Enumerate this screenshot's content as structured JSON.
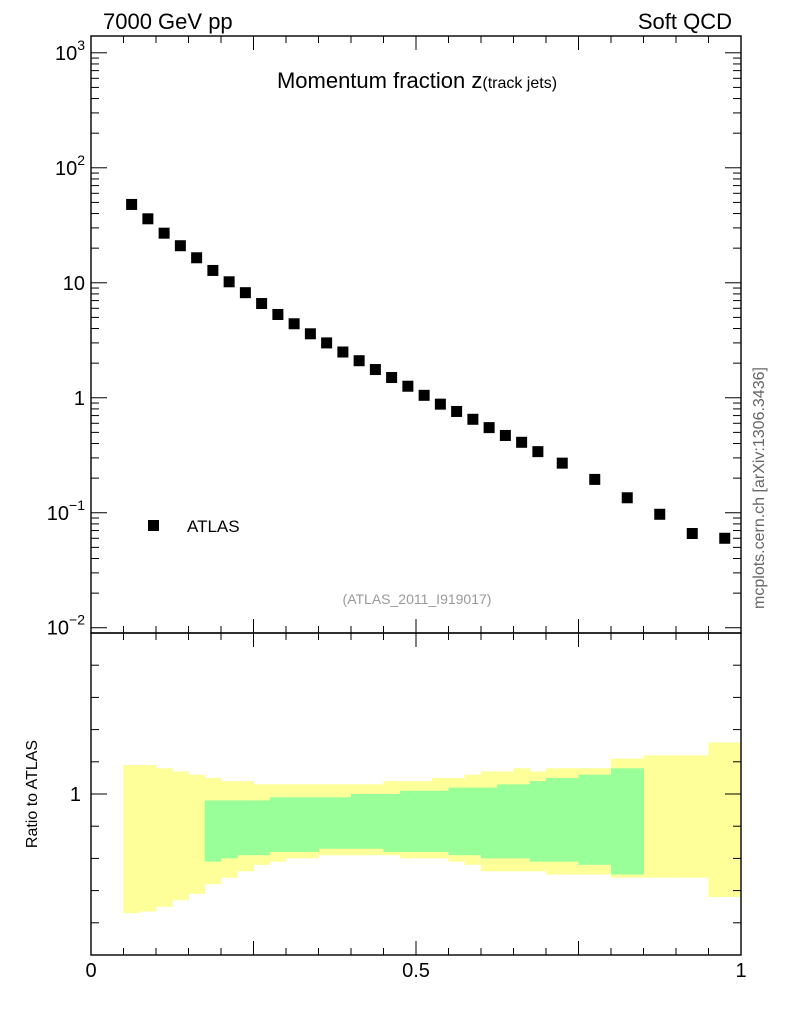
{
  "header": {
    "left": "7000 GeV pp",
    "right": "Soft QCD"
  },
  "side_label": "mcplots.cern.ch [arXiv:1306.3436]",
  "chart_data": [
    {
      "type": "scatter",
      "title_main": "Momentum fraction ",
      "title_z": "z",
      "title_sub": "(track jets)",
      "analysis_id": "(ATLAS_2011_I919017)",
      "ylog": true,
      "xlim": [
        0,
        1
      ],
      "ylim": [
        0.009,
        1400
      ],
      "y_ticks": [
        {
          "value": 0.01,
          "base": "10",
          "exp": "−2"
        },
        {
          "value": 0.1,
          "base": "10",
          "exp": "−1"
        },
        {
          "value": 1,
          "base": "1",
          "exp": ""
        },
        {
          "value": 10,
          "base": "10",
          "exp": ""
        },
        {
          "value": 100,
          "base": "10",
          "exp": "2"
        },
        {
          "value": 1000,
          "base": "10",
          "exp": "3"
        }
      ],
      "legend": "top-left-lower",
      "series": [
        {
          "name": "ATLAS",
          "color": "#000000",
          "marker": "square",
          "x": [
            0.0625,
            0.0875,
            0.1125,
            0.1375,
            0.1625,
            0.1875,
            0.2125,
            0.2375,
            0.2625,
            0.2875,
            0.3125,
            0.3375,
            0.3625,
            0.3875,
            0.4125,
            0.4375,
            0.4625,
            0.4875,
            0.5125,
            0.5375,
            0.5625,
            0.5875,
            0.6125,
            0.6375,
            0.6625,
            0.6875,
            0.725,
            0.775,
            0.825,
            0.875,
            0.925,
            0.975
          ],
          "y": [
            48,
            36,
            27,
            21,
            16.5,
            12.8,
            10.2,
            8.2,
            6.6,
            5.3,
            4.4,
            3.6,
            3.0,
            2.5,
            2.1,
            1.76,
            1.5,
            1.26,
            1.05,
            0.88,
            0.76,
            0.65,
            0.55,
            0.47,
            0.41,
            0.34,
            0.27,
            0.195,
            0.135,
            0.097,
            0.066,
            0.06
          ]
        }
      ]
    },
    {
      "type": "area",
      "ylabel": "Ratio to ATLAS",
      "ylim": [
        0.5,
        1.5
      ],
      "y_ticks": [
        {
          "value": 1,
          "label": "1"
        }
      ],
      "x_tick_labels": [
        {
          "value": 0,
          "label": "0"
        },
        {
          "value": 0.5,
          "label": "0.5"
        },
        {
          "value": 1,
          "label": "1"
        }
      ],
      "bins": [
        0.05,
        0.075,
        0.1,
        0.125,
        0.15,
        0.175,
        0.2,
        0.225,
        0.25,
        0.275,
        0.3,
        0.325,
        0.35,
        0.375,
        0.4,
        0.425,
        0.45,
        0.475,
        0.5,
        0.525,
        0.55,
        0.575,
        0.6,
        0.625,
        0.65,
        0.675,
        0.7,
        0.75,
        0.8,
        0.85,
        0.9,
        0.95,
        1.0
      ],
      "yellow_band": {
        "color": "#ffff99",
        "lo": [
          0.63,
          0.635,
          0.65,
          0.67,
          0.69,
          0.72,
          0.74,
          0.76,
          0.78,
          0.79,
          0.8,
          0.8,
          0.81,
          0.81,
          0.81,
          0.81,
          0.81,
          0.8,
          0.8,
          0.8,
          0.79,
          0.78,
          0.76,
          0.76,
          0.76,
          0.76,
          0.75,
          0.75,
          0.74,
          0.74,
          0.74,
          0.68
        ],
        "hi": [
          1.09,
          1.09,
          1.08,
          1.07,
          1.06,
          1.05,
          1.04,
          1.04,
          1.03,
          1.03,
          1.03,
          1.03,
          1.03,
          1.03,
          1.03,
          1.03,
          1.04,
          1.04,
          1.04,
          1.05,
          1.05,
          1.06,
          1.07,
          1.07,
          1.08,
          1.07,
          1.08,
          1.08,
          1.11,
          1.12,
          1.12,
          1.16
        ]
      },
      "green_band": {
        "color": "#99ff99",
        "start_bin": 5,
        "lo": [
          0.79,
          0.8,
          0.81,
          0.81,
          0.82,
          0.82,
          0.82,
          0.83,
          0.83,
          0.83,
          0.83,
          0.82,
          0.82,
          0.82,
          0.82,
          0.81,
          0.81,
          0.8,
          0.8,
          0.8,
          0.79,
          0.79,
          0.78,
          0.75
        ],
        "hi": [
          0.98,
          0.98,
          0.98,
          0.98,
          0.99,
          0.99,
          0.99,
          0.99,
          0.99,
          1.0,
          1.0,
          1.0,
          1.01,
          1.01,
          1.01,
          1.02,
          1.02,
          1.02,
          1.03,
          1.03,
          1.04,
          1.05,
          1.06,
          1.08
        ]
      }
    }
  ]
}
